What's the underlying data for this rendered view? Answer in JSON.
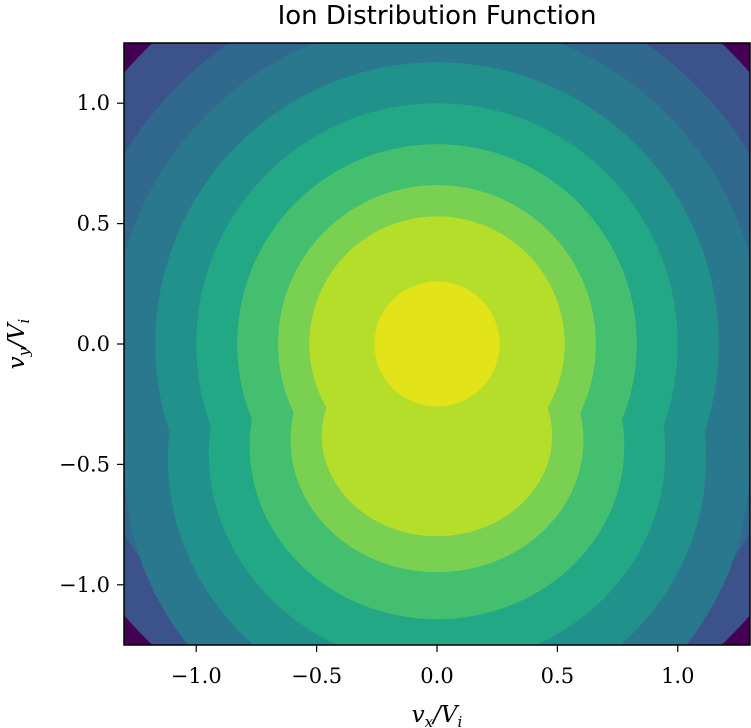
{
  "chart_data": {
    "type": "filled-contour",
    "title": "Ion Distribution Function",
    "xlabel": "v_x/V_i",
    "ylabel": "v_y/V_i",
    "xlim": [
      -1.3,
      1.3
    ],
    "ylim": [
      -1.25,
      1.25
    ],
    "xticks": [
      -1.0,
      -0.5,
      0.0,
      0.5,
      1.0
    ],
    "xtick_labels": [
      "−1.0",
      "−0.5",
      "0.0",
      "0.5",
      "1.0"
    ],
    "yticks": [
      -1.0,
      -0.5,
      0.0,
      0.5,
      1.0
    ],
    "ytick_labels": [
      "−1.0",
      "−0.5",
      "0.0",
      "0.5",
      "1.0"
    ],
    "colormap": "viridis",
    "grid": false,
    "legend": "none",
    "levels": [
      {
        "index": 0,
        "color": "#440154"
      },
      {
        "index": 1,
        "color": "#3b528b"
      },
      {
        "index": 2,
        "color": "#31688e"
      },
      {
        "index": 3,
        "color": "#2a788e"
      },
      {
        "index": 4,
        "color": "#21918c"
      },
      {
        "index": 5,
        "color": "#22a884"
      },
      {
        "index": 6,
        "color": "#44bf70"
      },
      {
        "index": 7,
        "color": "#7ad151"
      },
      {
        "index": 8,
        "color": "#b5de2b"
      },
      {
        "index": 9,
        "color": "#e2e318"
      }
    ],
    "contour_radii": [
      1.72,
      1.52,
      1.35,
      1.17,
      1.0,
      0.83,
      0.66,
      0.53,
      0.26
    ],
    "lower_lobe": {
      "center": [
        0.0,
        -0.38
      ],
      "radii": [
        0.38,
        0.28
      ]
    }
  }
}
